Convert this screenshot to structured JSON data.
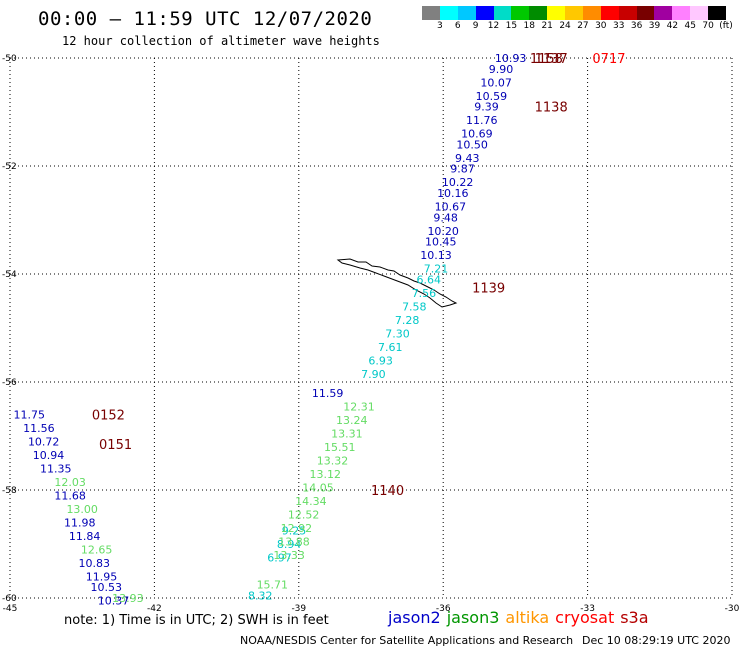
{
  "header": {
    "title": "00:00 – 11:59 UTC 12/07/2020",
    "subtitle": "12 hour collection of altimeter wave heights"
  },
  "colorbar": {
    "colors": [
      "#808080",
      "#00ffff",
      "#00c8ff",
      "#0000ff",
      "#00dcc8",
      "#00c800",
      "#008c00",
      "#ffff00",
      "#ffc800",
      "#ff8c00",
      "#ff0000",
      "#c80000",
      "#780000",
      "#a000a0",
      "#ff80ff",
      "#ffc8ff",
      "#000000"
    ],
    "labels": [
      "3",
      "6",
      "9",
      "12",
      "15",
      "18",
      "21",
      "24",
      "27",
      "30",
      "33",
      "36",
      "39",
      "42",
      "45",
      "70",
      "(ft)"
    ]
  },
  "map": {
    "lon_range": [
      -45,
      -30
    ],
    "lat_range": [
      -60,
      -50
    ],
    "x_ticks": [
      "-45",
      "-42",
      "-39",
      "-36",
      "-33",
      "-30"
    ],
    "y_ticks": [
      "-50",
      "-52",
      "-54",
      "-56",
      "-58",
      "-60"
    ],
    "grid": "dotted"
  },
  "tracks": [
    {
      "satellite": "jason2",
      "color": "#0000b4",
      "points": [
        {
          "lon": -34.6,
          "lat": -50.0,
          "v": "10.93"
        },
        {
          "lon": -34.8,
          "lat": -50.2,
          "v": "9.90"
        },
        {
          "lon": -34.9,
          "lat": -50.45,
          "v": "10.07"
        },
        {
          "lon": -35.0,
          "lat": -50.7,
          "v": "10.59"
        },
        {
          "lon": -35.1,
          "lat": -50.9,
          "v": "9.39"
        },
        {
          "lon": -35.2,
          "lat": -51.15,
          "v": "11.76"
        },
        {
          "lon": -35.3,
          "lat": -51.4,
          "v": "10.69"
        },
        {
          "lon": -35.4,
          "lat": -51.6,
          "v": "10.50"
        },
        {
          "lon": -35.5,
          "lat": -51.85,
          "v": "9.43"
        },
        {
          "lon": -35.6,
          "lat": -52.05,
          "v": "9.87"
        },
        {
          "lon": -35.7,
          "lat": -52.3,
          "v": "10.22"
        },
        {
          "lon": -35.8,
          "lat": -52.5,
          "v": "10.16"
        },
        {
          "lon": -35.85,
          "lat": -52.75,
          "v": "10.67"
        },
        {
          "lon": -35.95,
          "lat": -52.95,
          "v": "9.48"
        },
        {
          "lon": -36.0,
          "lat": -53.2,
          "v": "10.20"
        },
        {
          "lon": -36.05,
          "lat": -53.4,
          "v": "10.45"
        },
        {
          "lon": -36.15,
          "lat": -53.65,
          "v": "10.13"
        },
        {
          "lon": -38.4,
          "lat": -56.2,
          "v": "11.59"
        },
        {
          "lon": -44.6,
          "lat": -56.6,
          "v": "11.75"
        },
        {
          "lon": -44.4,
          "lat": -56.85,
          "v": "11.56"
        },
        {
          "lon": -44.3,
          "lat": -57.1,
          "v": "10.72"
        },
        {
          "lon": -44.2,
          "lat": -57.35,
          "v": "10.94"
        },
        {
          "lon": -44.05,
          "lat": -57.6,
          "v": "11.35"
        },
        {
          "lon": -43.75,
          "lat": -58.1,
          "v": "11.68"
        },
        {
          "lon": -43.55,
          "lat": -58.6,
          "v": "11.98"
        },
        {
          "lon": -43.45,
          "lat": -58.85,
          "v": "11.84"
        },
        {
          "lon": -43.25,
          "lat": -59.35,
          "v": "10.83"
        },
        {
          "lon": -43.1,
          "lat": -59.6,
          "v": "11.95"
        },
        {
          "lon": -43.0,
          "lat": -59.8,
          "v": "10.53"
        },
        {
          "lon": -42.85,
          "lat": -60.05,
          "v": "10.37"
        }
      ]
    },
    {
      "satellite": "jason3",
      "color": "#00c8c8",
      "points": [
        {
          "lon": -36.15,
          "lat": -53.9,
          "v": "7.21"
        },
        {
          "lon": -36.3,
          "lat": -54.1,
          "v": "6.64"
        },
        {
          "lon": -36.4,
          "lat": -54.35,
          "v": "7.56"
        },
        {
          "lon": -36.6,
          "lat": -54.6,
          "v": "7.58"
        },
        {
          "lon": -36.75,
          "lat": -54.85,
          "v": "7.28"
        },
        {
          "lon": -36.95,
          "lat": -55.1,
          "v": "7.30"
        },
        {
          "lon": -37.1,
          "lat": -55.35,
          "v": "7.61"
        },
        {
          "lon": -37.3,
          "lat": -55.6,
          "v": "6.93"
        },
        {
          "lon": -37.45,
          "lat": -55.85,
          "v": "7.90"
        },
        {
          "lon": -39.1,
          "lat": -58.75,
          "v": "9.25"
        },
        {
          "lon": -39.2,
          "lat": -59.0,
          "v": "8.94"
        },
        {
          "lon": -39.4,
          "lat": -59.25,
          "v": "6.97"
        },
        {
          "lon": -39.8,
          "lat": -59.95,
          "v": "8.32"
        }
      ]
    },
    {
      "satellite": "altika",
      "color": "#64dc64",
      "points": [
        {
          "lon": -37.75,
          "lat": -56.45,
          "v": "12.31"
        },
        {
          "lon": -37.9,
          "lat": -56.7,
          "v": "13.24"
        },
        {
          "lon": -38.0,
          "lat": -56.95,
          "v": "13.31"
        },
        {
          "lon": -38.15,
          "lat": -57.2,
          "v": "15.51"
        },
        {
          "lon": -38.3,
          "lat": -57.45,
          "v": "13.32"
        },
        {
          "lon": -38.45,
          "lat": -57.7,
          "v": "13.12"
        },
        {
          "lon": -38.6,
          "lat": -57.95,
          "v": "14.05"
        },
        {
          "lon": -38.75,
          "lat": -58.2,
          "v": "14.34"
        },
        {
          "lon": -38.9,
          "lat": -58.45,
          "v": "12.52"
        },
        {
          "lon": -39.05,
          "lat": -58.7,
          "v": "12.92"
        },
        {
          "lon": -39.1,
          "lat": -58.95,
          "v": "13.88"
        },
        {
          "lon": -39.2,
          "lat": -59.2,
          "v": "13.33"
        },
        {
          "lon": -39.55,
          "lat": -59.75,
          "v": "15.71"
        },
        {
          "lon": -43.75,
          "lat": -57.85,
          "v": "12.03"
        },
        {
          "lon": -43.5,
          "lat": -58.35,
          "v": "13.00"
        },
        {
          "lon": -43.2,
          "lat": -59.1,
          "v": "12.65"
        },
        {
          "lon": -42.55,
          "lat": -60.0,
          "v": "13.93"
        }
      ]
    }
  ],
  "time_labels": [
    {
      "lon": -34.1,
      "lat": -50.0,
      "t": "1137",
      "color": "#780000"
    },
    {
      "lon": -34.2,
      "lat": -50.0,
      "t": "1158",
      "color": "#780000"
    },
    {
      "lon": -32.9,
      "lat": -50.0,
      "t": "0717",
      "color": "#ff0000"
    },
    {
      "lon": -34.1,
      "lat": -50.9,
      "t": "1138",
      "color": "#780000"
    },
    {
      "lon": -35.4,
      "lat": -54.25,
      "t": "1139",
      "color": "#780000"
    },
    {
      "lon": -37.5,
      "lat": -58.0,
      "t": "1140",
      "color": "#780000"
    },
    {
      "lon": -43.3,
      "lat": -56.6,
      "t": "0152",
      "color": "#780000"
    },
    {
      "lon": -43.15,
      "lat": -57.15,
      "t": "0151",
      "color": "#780000"
    }
  ],
  "note": "note: 1) Time is in UTC; 2) SWH is in feet",
  "legend": [
    {
      "label": "jason2",
      "color": "#0000c8"
    },
    {
      "label": "jason3",
      "color": "#009600"
    },
    {
      "label": "altika",
      "color": "#ff9600"
    },
    {
      "label": "cryosat",
      "color": "#ff0000"
    },
    {
      "label": "s3a",
      "color": "#b40000"
    }
  ],
  "credit": "NOAA/NESDIS Center for Satellite Applications and Research",
  "timestamp": "Dec 10 08:29:19 UTC 2020"
}
